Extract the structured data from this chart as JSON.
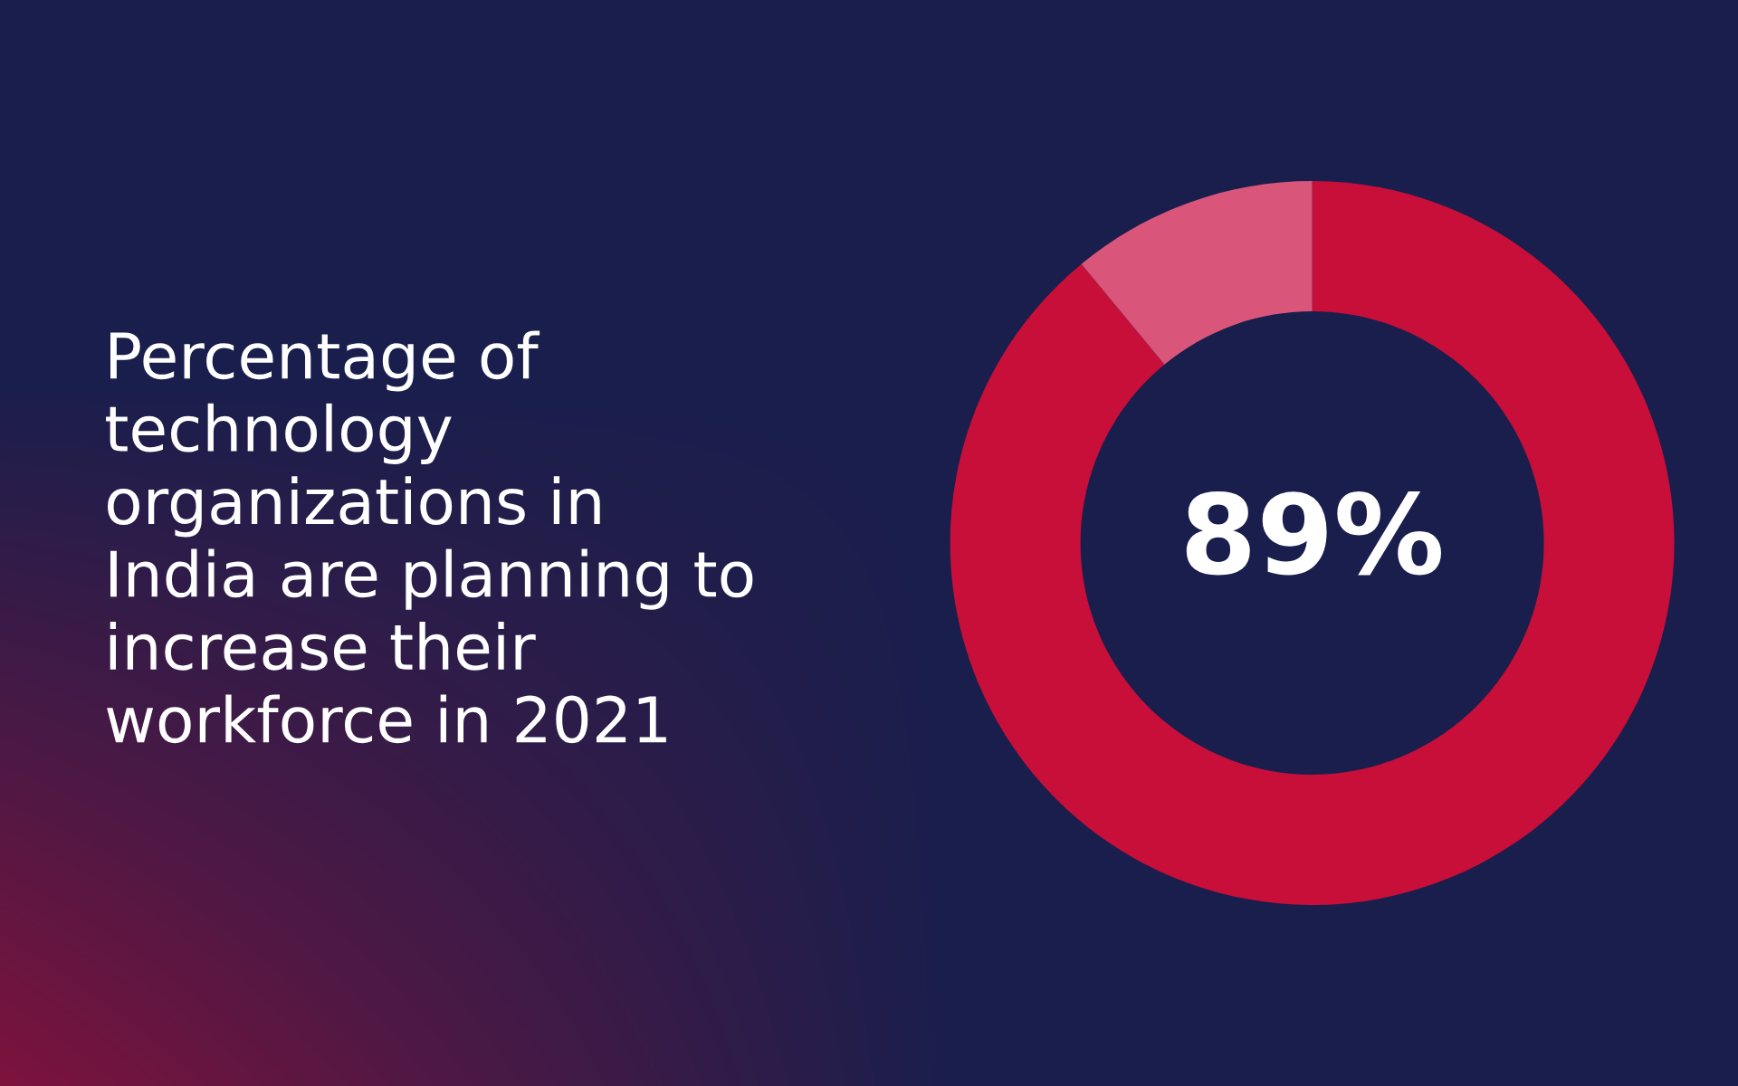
{
  "chart_data": {
    "type": "donut",
    "title": "Percentage of\ntechnology\norganizations in\nIndia are planning to\nincrease their\nworkforce in 2021",
    "categories": [
      null,
      null
    ],
    "values": [
      89,
      11
    ],
    "colors": [
      "#c70f3a",
      "#d9557a"
    ],
    "value_labels": [
      "89%",
      null
    ],
    "legend": false
  }
}
